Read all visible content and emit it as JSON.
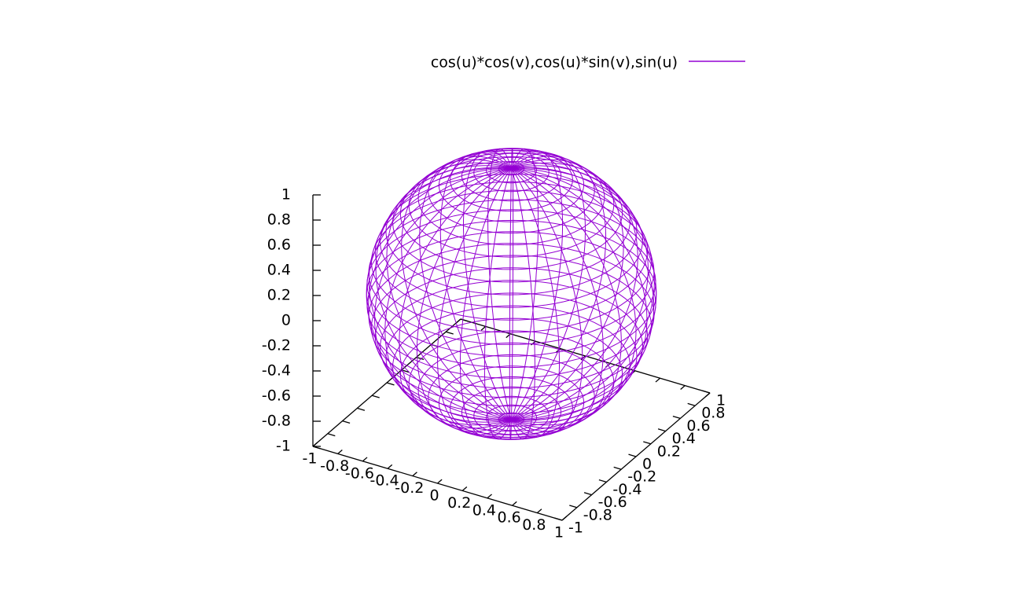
{
  "chart_data": {
    "type": "surface3d",
    "series": [
      {
        "name": "cos(u)*cos(v),cos(u)*sin(v),sin(u)",
        "color": "#9400d3"
      }
    ],
    "xlim": [
      -1,
      1
    ],
    "ylim": [
      -1,
      1
    ],
    "zlim": [
      -1,
      1
    ],
    "xticks": [
      -1,
      -0.8,
      -0.6,
      -0.4,
      -0.2,
      0,
      0.2,
      0.4,
      0.6,
      0.8,
      1
    ],
    "yticks": [
      -1,
      -0.8,
      -0.6,
      -0.4,
      -0.2,
      0,
      0.2,
      0.4,
      0.6,
      0.8,
      1
    ],
    "zticks": [
      -1,
      -0.8,
      -0.6,
      -0.4,
      -0.2,
      0,
      0.2,
      0.4,
      0.6,
      0.8,
      1
    ]
  }
}
